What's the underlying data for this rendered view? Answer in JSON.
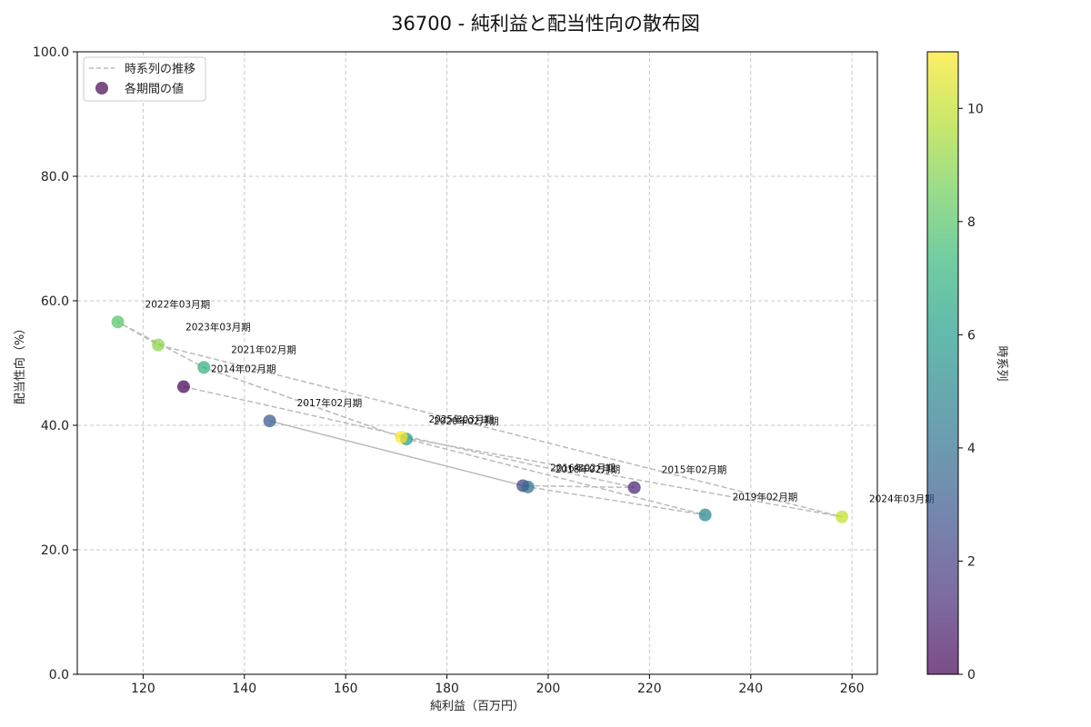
{
  "chart_data": {
    "type": "scatter",
    "title": "36700 - 純利益と配当性向の散布図",
    "xlabel": "純利益（百万円）",
    "ylabel": "配当性向（%）",
    "xlim": [
      107,
      265
    ],
    "ylim": [
      0,
      100
    ],
    "xticks": [
      120,
      140,
      160,
      180,
      200,
      220,
      240,
      260
    ],
    "yticks": [
      0,
      20,
      40,
      60,
      80,
      100
    ],
    "grid": true,
    "legend": {
      "position": "top-left",
      "entries": [
        {
          "label": "時系列の推移",
          "kind": "dashed-line"
        },
        {
          "label": "各期間の値",
          "kind": "marker"
        }
      ]
    },
    "colorbar": {
      "label": "時系列",
      "range": [
        0,
        11
      ],
      "ticks": [
        0,
        2,
        4,
        6,
        8,
        10
      ],
      "colormap": "viridis",
      "colors": [
        "#440154",
        "#482878",
        "#3e4989",
        "#31688e",
        "#26828e",
        "#1f9e89",
        "#35b779",
        "#6ece58",
        "#b5de2b",
        "#fde725"
      ]
    },
    "line_color": "#bbbbbb",
    "points": [
      {
        "label": "2014年02月期",
        "x": 128,
        "y": 46.2,
        "t": 0
      },
      {
        "label": "2015年02月期",
        "x": 217,
        "y": 30.0,
        "t": 1
      },
      {
        "label": "2016年02月期",
        "x": 195,
        "y": 30.3,
        "t": 2
      },
      {
        "label": "2017年02月期",
        "x": 145,
        "y": 40.7,
        "t": 3
      },
      {
        "label": "2018年02月期",
        "x": 196,
        "y": 30.1,
        "t": 4
      },
      {
        "label": "2019年02月期",
        "x": 231,
        "y": 25.6,
        "t": 5
      },
      {
        "label": "2020年02月期",
        "x": 172,
        "y": 37.8,
        "t": 6
      },
      {
        "label": "2021年02月期",
        "x": 132,
        "y": 49.3,
        "t": 7
      },
      {
        "label": "2022年03月期",
        "x": 115,
        "y": 56.6,
        "t": 8
      },
      {
        "label": "2023年03月期",
        "x": 123,
        "y": 52.9,
        "t": 9
      },
      {
        "label": "2024年03月期",
        "x": 258,
        "y": 25.3,
        "t": 10
      },
      {
        "label": "2025年03月期",
        "x": 171,
        "y": 38.1,
        "t": 11
      }
    ]
  }
}
